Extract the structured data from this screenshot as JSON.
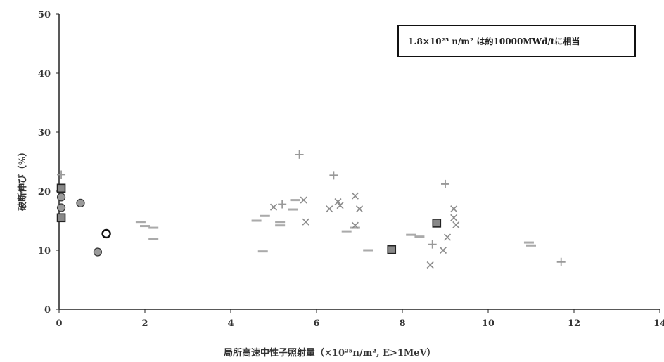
{
  "chart_data": {
    "type": "scatter",
    "title": "",
    "xlabel": "局所高速中性子照射量（×10²⁵n/m², E>1MeV）",
    "ylabel": "破断伸び（%）",
    "xlim": [
      0,
      14
    ],
    "ylim": [
      0,
      50
    ],
    "x_ticks": [
      "0",
      "2",
      "4",
      "6",
      "8",
      "10",
      "12",
      "14"
    ],
    "y_ticks": [
      "0",
      "10",
      "20",
      "30",
      "40",
      "50"
    ],
    "grid": false,
    "annotation": "1.8×10²⁵ n/m² は約10000MWd/tに相当",
    "colors": {
      "circle_fill": "#9a9a9a",
      "square_fill": "#888888",
      "dash": "#aaaaaa",
      "plus": "#999999",
      "cross": "#8c8c8c",
      "axis": "#222222"
    },
    "series": [
      {
        "marker": "open-circle",
        "points": [
          [
            1.1,
            12.8
          ]
        ]
      },
      {
        "marker": "filled-circle",
        "points": [
          [
            0.05,
            19
          ],
          [
            0.05,
            17.2
          ],
          [
            0.5,
            18
          ],
          [
            0.9,
            9.7
          ]
        ]
      },
      {
        "marker": "square",
        "points": [
          [
            0.05,
            20.5
          ],
          [
            0.05,
            15.5
          ],
          [
            7.75,
            10.1
          ],
          [
            8.8,
            14.6
          ]
        ]
      },
      {
        "marker": "dash",
        "points": [
          [
            1.9,
            14.8
          ],
          [
            2.0,
            14.1
          ],
          [
            2.2,
            13.8
          ],
          [
            2.2,
            11.9
          ],
          [
            4.6,
            15.0
          ],
          [
            4.75,
            9.8
          ],
          [
            4.8,
            15.8
          ],
          [
            5.15,
            14.8
          ],
          [
            5.15,
            14.2
          ],
          [
            5.45,
            16.9
          ],
          [
            5.5,
            18.5
          ],
          [
            6.7,
            13.2
          ],
          [
            6.9,
            13.8
          ],
          [
            7.2,
            10.0
          ],
          [
            8.2,
            12.6
          ],
          [
            8.4,
            12.3
          ],
          [
            10.95,
            11.3
          ],
          [
            11.0,
            10.8
          ]
        ]
      },
      {
        "marker": "plus",
        "points": [
          [
            0.05,
            22.8
          ],
          [
            5.2,
            17.8
          ],
          [
            5.6,
            26.2
          ],
          [
            6.4,
            22.7
          ],
          [
            8.7,
            11.0
          ],
          [
            9.0,
            21.2
          ],
          [
            11.7,
            8.0
          ]
        ]
      },
      {
        "marker": "cross",
        "points": [
          [
            5.0,
            17.3
          ],
          [
            5.7,
            18.5
          ],
          [
            5.75,
            14.8
          ],
          [
            6.3,
            17.0
          ],
          [
            6.5,
            18.2
          ],
          [
            6.55,
            17.6
          ],
          [
            6.9,
            14.2
          ],
          [
            6.9,
            19.2
          ],
          [
            7.0,
            17.0
          ],
          [
            8.65,
            7.5
          ],
          [
            8.95,
            10.0
          ],
          [
            9.05,
            12.2
          ],
          [
            9.2,
            17.0
          ],
          [
            9.2,
            15.5
          ],
          [
            9.25,
            14.3
          ]
        ]
      }
    ]
  }
}
